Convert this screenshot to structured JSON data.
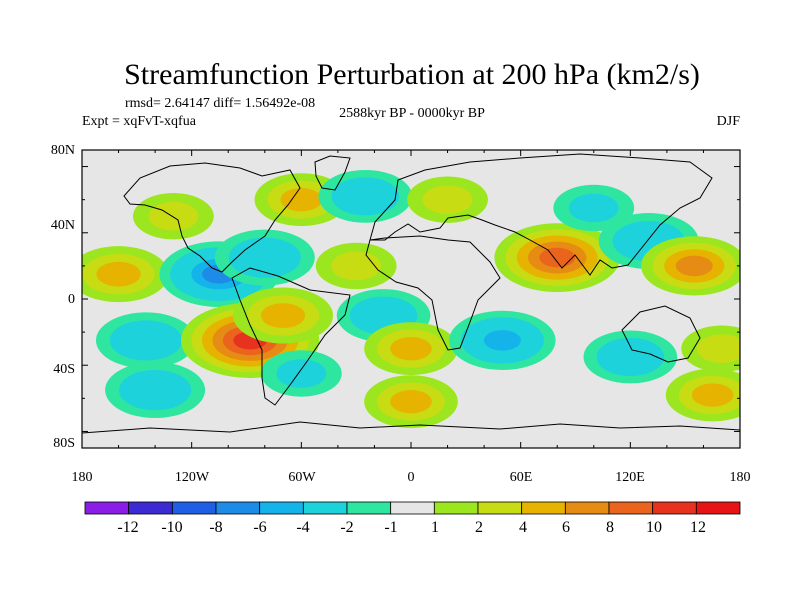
{
  "chart_data": {
    "type": "heatmap",
    "title": "Streamfunction Perturbation at 200 hPa (km2/s)",
    "stats": "rmsd= 2.64147 diff= 1.56492e-08",
    "left_label": "Expt = xqFvT-xqfua",
    "center_label": "2588kyr BP - 0000kyr BP",
    "right_label": "DJF",
    "x_ticks": [
      "180",
      "120W",
      "60W",
      "0",
      "60E",
      "120E",
      "180"
    ],
    "y_ticks": [
      "80N",
      "40N",
      "0",
      "40S",
      "80S"
    ],
    "xlim": [
      -180,
      180
    ],
    "ylim": [
      -90,
      90
    ],
    "colorbar": {
      "labels": [
        "-12",
        "-10",
        "-8",
        "-6",
        "-4",
        "-2",
        "-1",
        "1",
        "2",
        "4",
        "6",
        "8",
        "10",
        "12"
      ],
      "colors": [
        "#8a1ee6",
        "#3c2ad2",
        "#1e5fe6",
        "#1e8ce6",
        "#14b4eb",
        "#1ed2dc",
        "#2ee6a0",
        "#e6e6e6",
        "#9be61e",
        "#c8dc14",
        "#e6b400",
        "#e68c14",
        "#eb641e",
        "#e6321e",
        "#e61414"
      ]
    },
    "field": [
      {
        "lon": -160,
        "lat": 15,
        "value": 5
      },
      {
        "lon": -145,
        "lat": -25,
        "value": -5
      },
      {
        "lon": -140,
        "lat": -55,
        "value": -5
      },
      {
        "lon": -130,
        "lat": 50,
        "value": 2
      },
      {
        "lon": -105,
        "lat": 15,
        "value": -8
      },
      {
        "lon": -80,
        "lat": 25,
        "value": -5
      },
      {
        "lon": -88,
        "lat": -25,
        "value": 11
      },
      {
        "lon": -70,
        "lat": -10,
        "value": 5
      },
      {
        "lon": -60,
        "lat": -45,
        "value": -2
      },
      {
        "lon": -60,
        "lat": 60,
        "value": 4
      },
      {
        "lon": -25,
        "lat": 62,
        "value": -4
      },
      {
        "lon": -30,
        "lat": 20,
        "value": 2
      },
      {
        "lon": -15,
        "lat": -10,
        "value": -4
      },
      {
        "lon": 0,
        "lat": -30,
        "value": 4
      },
      {
        "lon": 0,
        "lat": -62,
        "value": 4
      },
      {
        "lon": 20,
        "lat": 60,
        "value": 2
      },
      {
        "lon": 50,
        "lat": -25,
        "value": -6
      },
      {
        "lon": 80,
        "lat": 25,
        "value": 9
      },
      {
        "lon": 100,
        "lat": 55,
        "value": -2
      },
      {
        "lon": 130,
        "lat": 35,
        "value": -5
      },
      {
        "lon": 155,
        "lat": 20,
        "value": 6
      },
      {
        "lon": 120,
        "lat": -35,
        "value": -4
      },
      {
        "lon": 170,
        "lat": -30,
        "value": 2
      },
      {
        "lon": 165,
        "lat": -58,
        "value": 4
      }
    ]
  }
}
